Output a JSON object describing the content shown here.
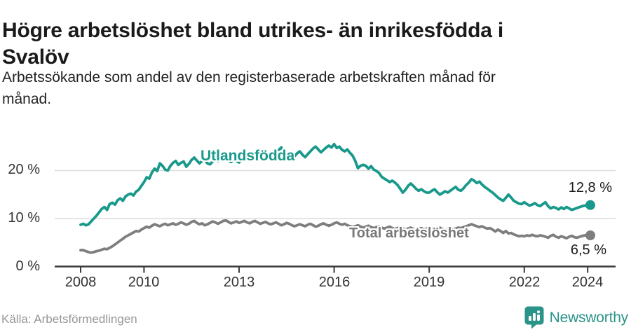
{
  "header": {
    "title_lines": [
      "Högre arbetslöshet bland utrikes- än inrikesfödda i",
      "Svalöv"
    ],
    "subtitle_lines": [
      "Arbetssökande som andel av den registerbaserade arbetskraften månad för",
      "månad."
    ]
  },
  "chart_data": {
    "type": "line",
    "title": "Högre arbetslöshet bland utrikes- än inrikesfödda i Svalöv",
    "subtitle": "Arbetssökande som andel av den registerbaserade arbetskraften månad för månad.",
    "unit": "%",
    "grid": true,
    "legend": "inline-labels",
    "x_start_year": 2008,
    "points_per_year": 12,
    "x_ticks": [
      2008,
      2010,
      2013,
      2016,
      2019,
      2022,
      2024
    ],
    "x_tick_labels": [
      "2008",
      "2010",
      "2013",
      "2016",
      "2019",
      "2022",
      "2024"
    ],
    "y_ticks": [
      0,
      10,
      20
    ],
    "y_tick_labels": [
      "0 %",
      "10 %",
      "20 %"
    ],
    "ylim": [
      0,
      27
    ],
    "axis_color": "#3b3b3b",
    "grid_color": "#dcdcdc",
    "series": [
      {
        "name": "Utlandsfödda",
        "color": "#18998b",
        "end_label": "12,8 %",
        "end_value": 12.8,
        "values": [
          8.7,
          8.9,
          8.6,
          8.8,
          9.4,
          10.0,
          10.6,
          11.3,
          12.0,
          12.4,
          11.8,
          13.0,
          13.3,
          12.9,
          13.8,
          14.2,
          13.7,
          14.6,
          15.0,
          15.2,
          14.8,
          15.6,
          16.0,
          16.8,
          17.6,
          18.6,
          18.3,
          19.6,
          20.4,
          19.9,
          21.5,
          21.0,
          20.2,
          20.0,
          21.0,
          21.6,
          22.0,
          21.2,
          21.6,
          21.9,
          20.8,
          21.4,
          22.2,
          22.7,
          22.1,
          21.5,
          22.0,
          22.3,
          21.5,
          21.3,
          21.9,
          22.4,
          22.0,
          22.6,
          23.0,
          22.5,
          22.1,
          21.8,
          22.3,
          22.0,
          21.7,
          22.4,
          23.1,
          23.6,
          23.2,
          22.7,
          22.3,
          22.8,
          23.3,
          22.9,
          23.4,
          23.0,
          22.6,
          23.2,
          23.8,
          24.3,
          24.8,
          24.1,
          23.6,
          23.1,
          22.5,
          23.0,
          23.6,
          24.0,
          23.3,
          22.8,
          23.4,
          24.0,
          24.6,
          25.0,
          24.4,
          23.8,
          24.3,
          24.8,
          25.2,
          24.8,
          25.5,
          24.7,
          25.0,
          24.3,
          24.0,
          24.4,
          23.7,
          23.1,
          22.0,
          20.5,
          21.0,
          21.2,
          21.0,
          20.4,
          20.9,
          20.2,
          19.9,
          19.5,
          18.7,
          18.3,
          18.0,
          17.6,
          17.9,
          17.5,
          17.0,
          16.2,
          15.4,
          16.0,
          16.8,
          17.3,
          16.8,
          16.2,
          15.8,
          16.1,
          15.7,
          15.4,
          15.4,
          15.8,
          16.1,
          15.5,
          15.0,
          15.3,
          15.7,
          15.4,
          15.8,
          16.2,
          16.6,
          16.0,
          15.8,
          16.3,
          17.0,
          17.5,
          18.2,
          17.9,
          17.4,
          17.7,
          17.1,
          16.6,
          16.2,
          15.8,
          15.4,
          14.9,
          14.4,
          14.0,
          13.7,
          14.3,
          15.0,
          14.4,
          13.7,
          13.4,
          13.1,
          13.0,
          13.4,
          13.0,
          12.7,
          12.9,
          13.2,
          12.8,
          12.6,
          13.0,
          13.4,
          12.6,
          12.1,
          12.4,
          12.2,
          11.9,
          12.3,
          12.0,
          12.4,
          12.1,
          11.8,
          12.0,
          12.2,
          12.4,
          12.6,
          12.7,
          12.7,
          12.8
        ]
      },
      {
        "name": "Total arbetslöshet",
        "color": "#7e7e7e",
        "end_label": "6,5 %",
        "end_value": 6.5,
        "values": [
          3.4,
          3.4,
          3.2,
          3.0,
          2.9,
          3.0,
          3.2,
          3.3,
          3.5,
          3.7,
          3.6,
          3.9,
          4.2,
          4.6,
          5.0,
          5.4,
          5.8,
          6.2,
          6.5,
          6.8,
          7.1,
          7.4,
          7.3,
          7.7,
          8.0,
          8.3,
          8.1,
          8.5,
          8.8,
          8.6,
          8.4,
          8.7,
          8.9,
          8.6,
          8.8,
          9.0,
          8.7,
          8.9,
          9.2,
          9.0,
          8.7,
          8.9,
          9.3,
          9.5,
          9.1,
          8.8,
          9.0,
          8.6,
          8.8,
          9.1,
          9.4,
          9.2,
          8.9,
          9.2,
          9.5,
          9.6,
          9.3,
          9.0,
          9.2,
          9.4,
          9.1,
          9.3,
          9.5,
          9.2,
          9.0,
          9.3,
          9.5,
          9.2,
          8.9,
          9.1,
          9.3,
          9.0,
          8.8,
          9.0,
          9.2,
          8.9,
          8.6,
          8.8,
          9.1,
          8.9,
          8.6,
          8.4,
          8.6,
          8.8,
          8.6,
          8.4,
          8.7,
          8.9,
          8.6,
          8.3,
          8.5,
          8.8,
          9.0,
          8.7,
          8.5,
          8.7,
          9.0,
          9.2,
          8.9,
          8.7,
          8.9,
          8.6,
          8.4,
          8.2,
          8.4,
          8.6,
          8.3,
          8.1,
          8.3,
          8.5,
          8.2,
          8.0,
          8.2,
          8.4,
          8.1,
          7.9,
          8.1,
          8.3,
          8.0,
          7.8,
          8.0,
          8.2,
          7.9,
          7.7,
          7.9,
          8.1,
          7.8,
          7.6,
          7.8,
          8.0,
          7.7,
          7.9,
          7.8,
          8.0,
          7.7,
          7.9,
          8.1,
          7.8,
          7.6,
          7.8,
          8.0,
          7.7,
          7.9,
          8.1,
          8.0,
          8.2,
          8.4,
          8.6,
          8.8,
          8.6,
          8.4,
          8.2,
          8.4,
          8.1,
          7.9,
          8.0,
          7.7,
          7.3,
          7.7,
          7.4,
          7.0,
          7.4,
          6.9,
          7.0,
          6.7,
          6.5,
          6.3,
          6.4,
          6.3,
          6.5,
          6.4,
          6.6,
          6.4,
          6.3,
          6.5,
          6.4,
          6.2,
          6.0,
          6.4,
          6.6,
          6.2,
          6.0,
          6.3,
          6.1,
          5.9,
          6.2,
          6.4,
          6.1,
          6.0,
          6.2,
          6.4,
          6.5,
          6.4,
          6.5
        ]
      }
    ]
  },
  "footer": {
    "source": "Källa: Arbetsförmedlingen",
    "brand": "Newsworthy",
    "brand_icon": "bar-chart-pin-icon",
    "brand_color": "#2a9488"
  }
}
